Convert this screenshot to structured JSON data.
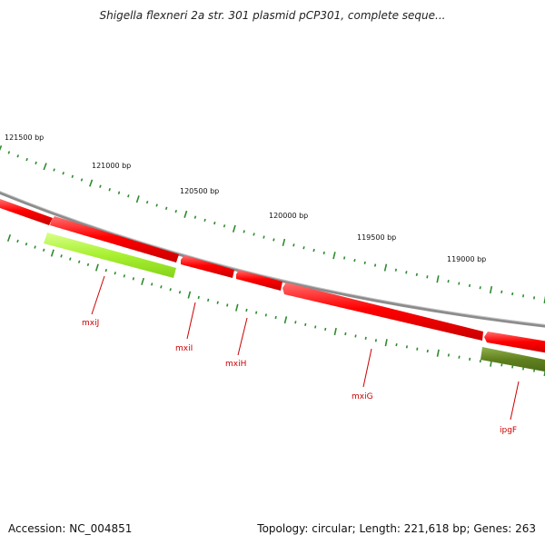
{
  "title": "Shigella flexneri 2a str. 301 plasmid pCP301, complete seque...",
  "footer": {
    "accession": "Accession: NC_004851",
    "summary": "Topology: circular; Length: 221,618 bp; Genes: 263"
  },
  "scale_labels": [
    "121500 bp",
    "121000 bp",
    "120500 bp",
    "120000 bp",
    "119500 bp",
    "119000 bp"
  ],
  "genes": [
    {
      "name": "mxiJ",
      "color": "#b4f03c"
    },
    {
      "name": "mxiI",
      "color": "#ff0000"
    },
    {
      "name": "mxiH",
      "color": "#ff0000"
    },
    {
      "name": "mxiG",
      "color": "#ff0000"
    },
    {
      "name": "ipgF",
      "color": "#6b8e23"
    }
  ],
  "colors": {
    "backbone": "#8c8c8c",
    "forward_gene": "#ff0000",
    "tick_marks": "#2e8b2e",
    "labels": "#cc0000"
  }
}
